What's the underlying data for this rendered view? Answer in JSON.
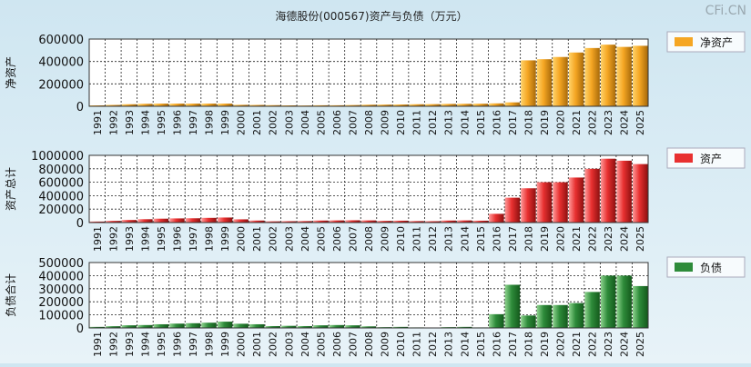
{
  "title": "海德股份(000567)资产与负债（万元）",
  "watermark": "CFi.CN",
  "colors": {
    "equity": "#f5a623",
    "assets": "#e83030",
    "liabilities": "#2e8b3a"
  },
  "chart_data": [
    {
      "type": "bar",
      "ylabel": "净资产",
      "legend": "净资产",
      "legend_position": "right",
      "grid": true,
      "ylim": [
        0,
        600000
      ],
      "yticks": [
        0,
        200000,
        400000,
        600000
      ],
      "categories": [
        "1991",
        "1992",
        "1993",
        "1994",
        "1995",
        "1996",
        "1997",
        "1998",
        "1999",
        "2000",
        "2001",
        "2002",
        "2003",
        "2004",
        "2005",
        "2006",
        "2007",
        "2008",
        "2009",
        "2010",
        "2011",
        "2012",
        "2013",
        "2014",
        "2015",
        "2016",
        "2017",
        "2018",
        "2019",
        "2020",
        "2021",
        "2022",
        "2023",
        "2024",
        "2025"
      ],
      "values": [
        8000,
        12000,
        18000,
        22000,
        24000,
        24000,
        24000,
        24000,
        24000,
        13000,
        12000,
        10000,
        8000,
        7000,
        9000,
        9000,
        11000,
        14000,
        15000,
        16000,
        18000,
        19000,
        21000,
        22000,
        23000,
        26000,
        35000,
        410000,
        420000,
        440000,
        480000,
        520000,
        550000,
        530000,
        540000
      ]
    },
    {
      "type": "bar",
      "ylabel": "资产总计",
      "legend": "资产",
      "legend_position": "right",
      "grid": true,
      "ylim": [
        0,
        1000000
      ],
      "yticks": [
        0,
        200000,
        400000,
        600000,
        800000,
        1000000
      ],
      "categories": [
        "1991",
        "1992",
        "1993",
        "1994",
        "1995",
        "1996",
        "1997",
        "1998",
        "1999",
        "2000",
        "2001",
        "2002",
        "2003",
        "2004",
        "2005",
        "2006",
        "2007",
        "2008",
        "2009",
        "2010",
        "2011",
        "2012",
        "2013",
        "2014",
        "2015",
        "2016",
        "2017",
        "2018",
        "2019",
        "2020",
        "2021",
        "2022",
        "2023",
        "2024",
        "2025"
      ],
      "values": [
        15000,
        25000,
        38000,
        50000,
        58000,
        62000,
        64000,
        70000,
        75000,
        48000,
        30000,
        18000,
        20000,
        22000,
        30000,
        32000,
        34000,
        32000,
        25000,
        28000,
        22000,
        20000,
        30000,
        32000,
        28000,
        130000,
        370000,
        510000,
        600000,
        600000,
        670000,
        800000,
        950000,
        920000,
        870000
      ]
    },
    {
      "type": "bar",
      "ylabel": "负债合计",
      "legend": "负债",
      "legend_position": "right",
      "grid": true,
      "ylim": [
        0,
        500000
      ],
      "yticks": [
        0,
        100000,
        200000,
        300000,
        400000,
        500000
      ],
      "categories": [
        "1991",
        "1992",
        "1993",
        "1994",
        "1995",
        "1996",
        "1997",
        "1998",
        "1999",
        "2000",
        "2001",
        "2002",
        "2003",
        "2004",
        "2005",
        "2006",
        "2007",
        "2008",
        "2009",
        "2010",
        "2011",
        "2012",
        "2013",
        "2014",
        "2015",
        "2016",
        "2017",
        "2018",
        "2019",
        "2020",
        "2021",
        "2022",
        "2023",
        "2024",
        "2025"
      ],
      "values": [
        8000,
        13000,
        20000,
        22000,
        28000,
        33000,
        36000,
        40000,
        48000,
        32000,
        28000,
        14000,
        16000,
        14000,
        20000,
        22000,
        20000,
        12000,
        6000,
        8000,
        4000,
        2000,
        6000,
        8000,
        4000,
        105000,
        330000,
        95000,
        175000,
        175000,
        190000,
        275000,
        400000,
        400000,
        320000
      ]
    }
  ]
}
